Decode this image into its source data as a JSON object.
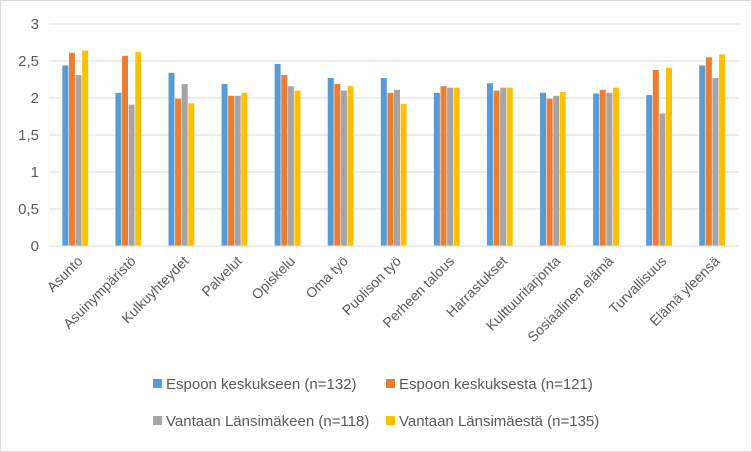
{
  "chart_data": {
    "type": "bar",
    "title": "",
    "xlabel": "",
    "ylabel": "",
    "ylim": [
      0,
      3
    ],
    "yticks": [
      "0",
      "0,5",
      "1",
      "1,5",
      "2",
      "2,5",
      "3"
    ],
    "grid": true,
    "legend_position": "bottom",
    "categories": [
      "Asunto",
      "Asuinympäristö",
      "Kulkuyhteydet",
      "Palvelut",
      "Opiskelu",
      "Oma työ",
      "Puolison työ",
      "Perheen talous",
      "Harrastukset",
      "Kulttuuritarjonta",
      "Sosiaalinen elämä",
      "Turvallisuus",
      "Elämä yleensä"
    ],
    "series": [
      {
        "name": "Espoon keskukseen (n=132)",
        "color": "#5b9bd5",
        "values": [
          2.44,
          2.07,
          2.34,
          2.19,
          2.46,
          2.27,
          2.27,
          2.07,
          2.2,
          2.07,
          2.06,
          2.04,
          2.44
        ]
      },
      {
        "name": "Espoon keskuksesta (n=121)",
        "color": "#ed7d31",
        "values": [
          2.61,
          2.57,
          1.99,
          2.03,
          2.31,
          2.19,
          2.07,
          2.16,
          2.1,
          1.99,
          2.11,
          2.38,
          2.55
        ]
      },
      {
        "name": "Vantaan Länsimäkeen (n=118)",
        "color": "#a5a5a5",
        "values": [
          2.31,
          1.91,
          2.19,
          2.03,
          2.16,
          2.1,
          2.11,
          2.14,
          2.14,
          2.03,
          2.07,
          1.79,
          2.27
        ]
      },
      {
        "name": "Vantaan Länsimäestä (n=135)",
        "color": "#ffc000",
        "values": [
          2.64,
          2.62,
          1.93,
          2.07,
          2.1,
          2.16,
          1.92,
          2.14,
          2.14,
          2.08,
          2.14,
          2.41,
          2.59
        ]
      }
    ]
  }
}
